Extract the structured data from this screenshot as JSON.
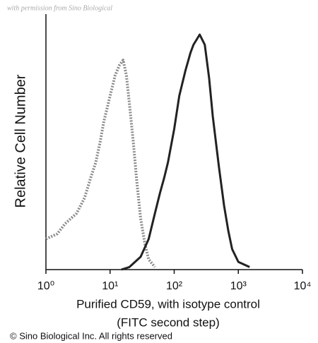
{
  "chart_data": {
    "type": "line",
    "watermark": "with permission from Sino Biological",
    "ylabel": "Relative Cell Number",
    "xlabel": [
      "Purified CD59, with isotype control",
      "(FITC second step)"
    ],
    "footer": "© Sino Biological Inc. All rights reserved",
    "xlog": true,
    "xlim": [
      1,
      10000
    ],
    "xticks": [
      {
        "value": 1,
        "label": "10⁰"
      },
      {
        "value": 10,
        "label": "10¹"
      },
      {
        "value": 100,
        "label": "10²"
      },
      {
        "value": 1000,
        "label": "10³"
      },
      {
        "value": 10000,
        "label": "10⁴"
      }
    ],
    "ylim": [
      0,
      100
    ],
    "series": [
      {
        "color": "#8a8a8a",
        "dashed": true,
        "x": [
          1,
          1.5,
          2,
          3,
          4,
          5,
          6,
          7,
          8,
          10,
          12,
          14,
          16,
          18,
          20,
          23,
          26,
          30,
          35,
          40,
          50
        ],
        "values": [
          12,
          14,
          18,
          22,
          28,
          36,
          42,
          50,
          58,
          68,
          76,
          80,
          82,
          76,
          65,
          50,
          35,
          20,
          10,
          4,
          1
        ]
      },
      {
        "color": "#222222",
        "dashed": false,
        "x": [
          15,
          20,
          30,
          40,
          50,
          60,
          70,
          80,
          100,
          120,
          150,
          180,
          200,
          250,
          300,
          350,
          400,
          500,
          600,
          700,
          800,
          1000,
          1500
        ],
        "values": [
          0,
          1,
          5,
          12,
          22,
          30,
          36,
          42,
          55,
          68,
          78,
          85,
          88,
          92,
          88,
          75,
          60,
          40,
          25,
          15,
          8,
          3,
          1
        ]
      }
    ]
  }
}
